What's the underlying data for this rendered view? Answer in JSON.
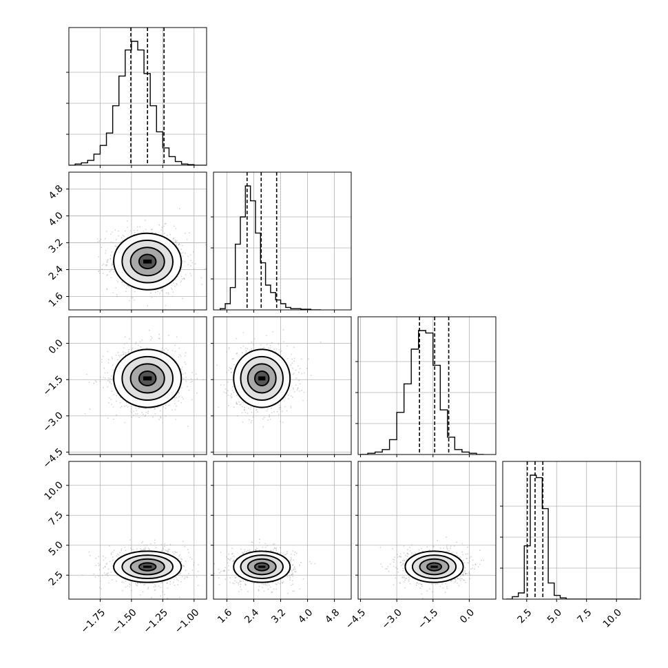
{
  "chart_data": {
    "type": "corner",
    "title": "",
    "parameters": [
      {
        "label": "",
        "range": [
          -2.0,
          -0.9
        ],
        "ticks": [
          "−1.75",
          "−1.50",
          "−1.25",
          "−1.00"
        ],
        "tick_values": [
          -1.75,
          -1.5,
          -1.25,
          -1.0
        ],
        "quantiles": [
          -1.505,
          -1.372,
          -1.24
        ],
        "hist_edges_start": -2.0,
        "hist_bin_width": 0.05,
        "hist_counts": [
          0,
          0.01,
          0.02,
          0.04,
          0.09,
          0.16,
          0.26,
          0.48,
          0.72,
          0.93,
          1.0,
          0.93,
          0.74,
          0.48,
          0.27,
          0.14,
          0.07,
          0.03,
          0.01,
          0.005,
          0,
          0
        ]
      },
      {
        "label": "",
        "range": [
          1.2,
          5.3
        ],
        "ticks": [
          "1.6",
          "2.4",
          "3.2",
          "4.0",
          "4.8"
        ],
        "tick_values": [
          1.6,
          2.4,
          3.2,
          4.0,
          4.8
        ],
        "quantiles": [
          2.2,
          2.62,
          3.08
        ],
        "hist_edges_start": 1.4,
        "hist_bin_width": 0.15,
        "hist_counts": [
          0.01,
          0.05,
          0.18,
          0.53,
          0.75,
          1.0,
          0.88,
          0.62,
          0.38,
          0.2,
          0.14,
          0.08,
          0.05,
          0.02,
          0.01,
          0.01,
          0.005,
          0.005,
          0,
          0
        ]
      },
      {
        "label": "",
        "range": [
          -4.6,
          1.1
        ],
        "ticks": [
          "−4.5",
          "−3.0",
          "−1.5",
          "0.0"
        ],
        "tick_values": [
          -4.5,
          -3.0,
          -1.5,
          0.0
        ],
        "quantiles": [
          -2.06,
          -1.43,
          -0.85
        ],
        "hist_edges_start": -4.5,
        "hist_bin_width": 0.3,
        "hist_counts": [
          0,
          0.01,
          0.02,
          0.04,
          0.12,
          0.34,
          0.57,
          0.85,
          1.0,
          0.98,
          0.72,
          0.36,
          0.14,
          0.04,
          0.02,
          0.01,
          0
        ]
      },
      {
        "label": "",
        "range": [
          0.5,
          12.0
        ],
        "ticks": [
          "2.5",
          "5.0",
          "7.5",
          "10.0"
        ],
        "tick_values": [
          2.5,
          5.0,
          7.5,
          10.0
        ],
        "quantiles": [
          2.55,
          3.2,
          3.85
        ],
        "hist_edges_start": 0.8,
        "hist_bin_width": 0.5,
        "hist_counts": [
          0,
          0.02,
          0.05,
          0.43,
          1.0,
          0.98,
          0.73,
          0.13,
          0.03,
          0.01,
          0,
          0,
          0,
          0,
          0,
          0,
          0,
          0,
          0,
          0,
          0,
          0
        ]
      }
    ],
    "pairs": [
      {
        "row": 1,
        "col": 0,
        "mean": [
          -1.372,
          2.64
        ],
        "sigma": [
          0.135,
          0.42
        ],
        "rho": -0.1
      },
      {
        "row": 2,
        "col": 0,
        "mean": [
          -1.372,
          -1.45
        ],
        "sigma": [
          0.135,
          0.6
        ],
        "rho": 0.0
      },
      {
        "row": 2,
        "col": 1,
        "mean": [
          2.64,
          -1.45
        ],
        "sigma": [
          0.42,
          0.6
        ],
        "rho": 0.0
      },
      {
        "row": 3,
        "col": 0,
        "mean": [
          -1.372,
          3.2
        ],
        "sigma": [
          0.135,
          0.65
        ],
        "rho": 0.0
      },
      {
        "row": 3,
        "col": 1,
        "mean": [
          2.64,
          3.2
        ],
        "sigma": [
          0.42,
          0.65
        ],
        "rho": 0.0
      },
      {
        "row": 3,
        "col": 2,
        "mean": [
          -1.45,
          3.2
        ],
        "sigma": [
          0.6,
          0.65
        ],
        "rho": 0.0
      }
    ],
    "contour_levels_sigma": [
      0.5,
      1.0,
      1.5,
      2.0
    ],
    "grid": true,
    "quantile_lines": "dashed",
    "colors": {
      "ink": "#000000",
      "grid": "#b0b0b0",
      "points": "#9a9a9a"
    }
  }
}
